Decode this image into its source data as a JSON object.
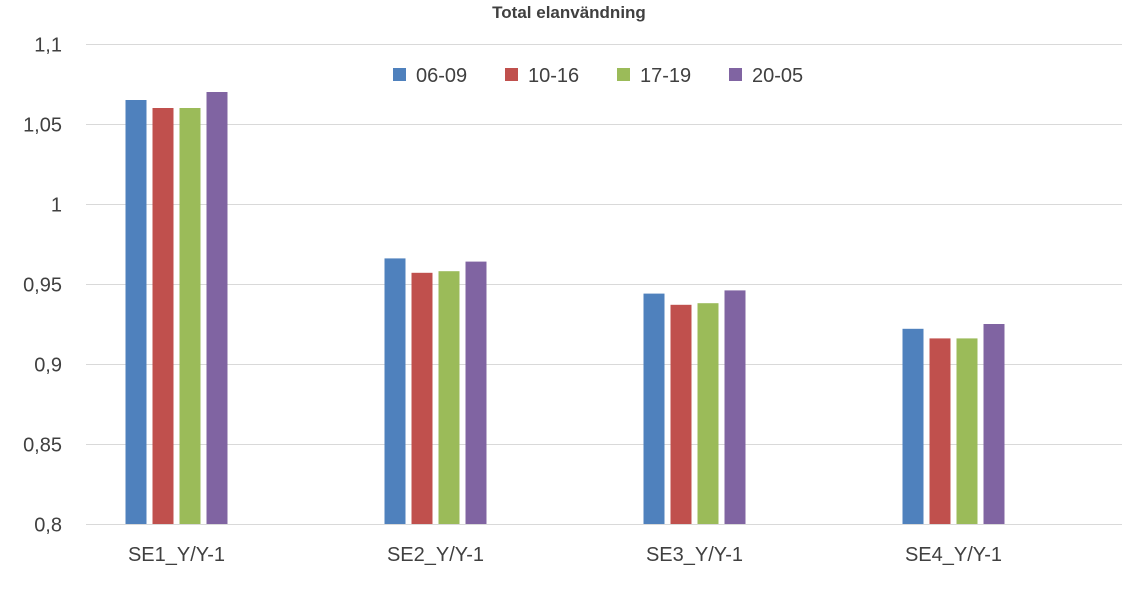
{
  "chart_data": {
    "type": "bar",
    "title": "Total elanvändning",
    "xlabel": "",
    "ylabel": "",
    "categories": [
      "SE1_Y/Y-1",
      "SE2_Y/Y-1",
      "SE3_Y/Y-1",
      "SE4_Y/Y-1"
    ],
    "series": [
      {
        "name": "06-09",
        "color": "#4f81bd",
        "values": [
          1.065,
          0.966,
          0.944,
          0.922
        ]
      },
      {
        "name": "10-16",
        "color": "#c0504d",
        "values": [
          1.06,
          0.957,
          0.937,
          0.916
        ]
      },
      {
        "name": "17-19",
        "color": "#9bbb59",
        "values": [
          1.06,
          0.958,
          0.938,
          0.916
        ]
      },
      {
        "name": "20-05",
        "color": "#8064a2",
        "values": [
          1.07,
          0.964,
          0.946,
          0.925
        ]
      }
    ],
    "ylim": [
      0.8,
      1.1
    ],
    "yticks": [
      0.8,
      0.85,
      0.9,
      0.95,
      1,
      1.05,
      1.1
    ],
    "ytick_labels": [
      "0,8",
      "0,85",
      "0,9",
      "0,95",
      "1",
      "1,05",
      "1,1"
    ],
    "grid": true,
    "legend_position": "top-center"
  }
}
